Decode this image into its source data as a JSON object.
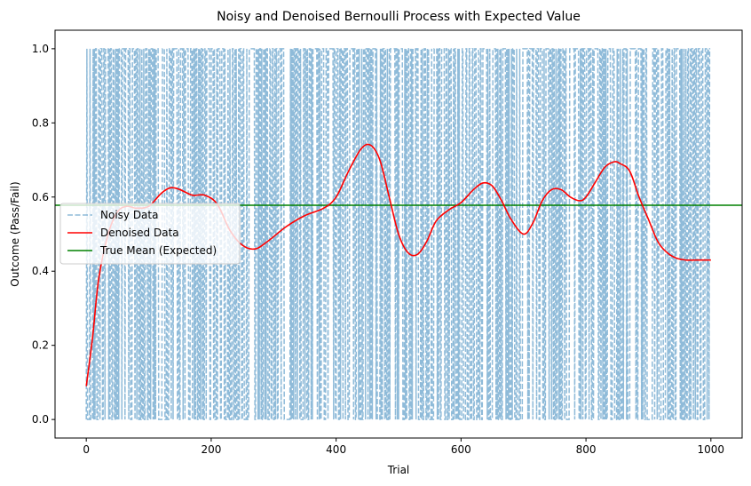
{
  "chart_data": {
    "type": "line",
    "title": "Noisy and Denoised Bernoulli Process with Expected Value",
    "xlabel": "Trial",
    "ylabel": "Outcome (Pass/Fail)",
    "xlim": [
      -50,
      1050
    ],
    "ylim": [
      -0.05,
      1.05
    ],
    "xticks": [
      0,
      200,
      400,
      600,
      800,
      1000
    ],
    "xtick_labels": [
      "0",
      "200",
      "400",
      "600",
      "800",
      "1000"
    ],
    "yticks": [
      0.0,
      0.2,
      0.4,
      0.6,
      0.8,
      1.0
    ],
    "ytick_labels": [
      "0.0",
      "0.2",
      "0.4",
      "0.6",
      "0.8",
      "1.0"
    ],
    "grid": false,
    "legend_position": "center-left",
    "series": [
      {
        "name": "Noisy Data",
        "style": "dashed",
        "color": "#1f77b4",
        "alpha": 0.5,
        "n_trials": 1000,
        "values_range": [
          0,
          1
        ],
        "note_values": "binary 0/1 outcomes"
      },
      {
        "name": "Denoised Data",
        "style": "solid",
        "color": "#ff0000",
        "x": [
          0,
          10,
          20,
          35,
          50,
          65,
          80,
          100,
          120,
          135,
          150,
          170,
          190,
          210,
          230,
          250,
          270,
          290,
          320,
          350,
          380,
          400,
          420,
          440,
          455,
          470,
          485,
          500,
          515,
          530,
          545,
          560,
          580,
          600,
          620,
          635,
          650,
          665,
          680,
          700,
          715,
          730,
          745,
          760,
          775,
          790,
          800,
          815,
          830,
          845,
          855,
          870,
          885,
          900,
          915,
          930,
          945,
          960,
          975,
          990,
          1000
        ],
        "values": [
          0.09,
          0.22,
          0.38,
          0.5,
          0.56,
          0.575,
          0.57,
          0.575,
          0.61,
          0.625,
          0.62,
          0.605,
          0.605,
          0.58,
          0.51,
          0.47,
          0.46,
          0.48,
          0.52,
          0.55,
          0.57,
          0.6,
          0.67,
          0.73,
          0.74,
          0.7,
          0.6,
          0.5,
          0.45,
          0.445,
          0.48,
          0.535,
          0.565,
          0.585,
          0.62,
          0.638,
          0.63,
          0.59,
          0.54,
          0.5,
          0.53,
          0.59,
          0.62,
          0.62,
          0.6,
          0.59,
          0.6,
          0.64,
          0.68,
          0.695,
          0.69,
          0.67,
          0.6,
          0.54,
          0.48,
          0.45,
          0.435,
          0.43,
          0.43,
          0.43,
          0.43
        ]
      },
      {
        "name": "True Mean (Expected)",
        "style": "solid",
        "color": "#008000",
        "value": 0.578
      }
    ]
  }
}
